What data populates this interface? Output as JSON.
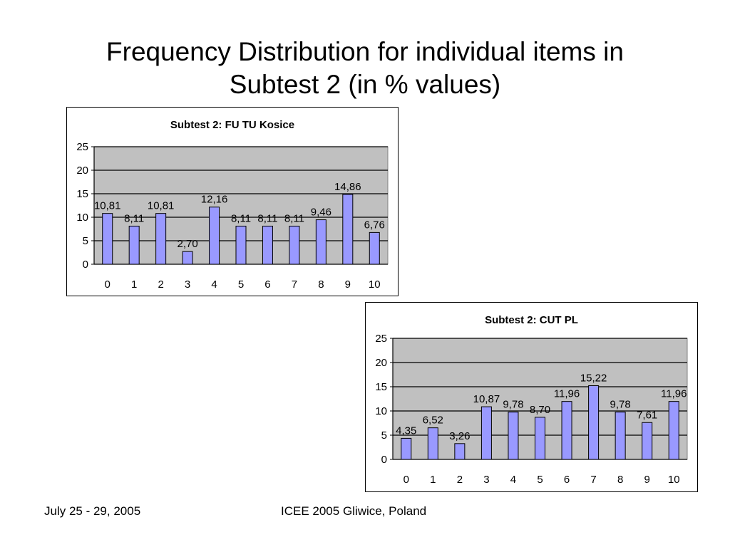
{
  "slide": {
    "title_line1": "Frequency Distribution for individual items in",
    "title_line2": "Subtest 2 (in % values)"
  },
  "footer": {
    "date": "July 25 - 29, 2005",
    "venue": "ICEE 2005 Gliwice, Poland"
  },
  "colors": {
    "bar_fill": "#9999ff",
    "bar_stroke": "#000000",
    "plot_bg": "#c0c0c0"
  },
  "chart_data": [
    {
      "type": "bar",
      "title": "Subtest 2: FU TU Kosice",
      "categories": [
        "0",
        "1",
        "2",
        "3",
        "4",
        "5",
        "6",
        "7",
        "8",
        "9",
        "10"
      ],
      "values": [
        10.81,
        8.11,
        10.81,
        2.7,
        12.16,
        8.11,
        8.11,
        8.11,
        9.46,
        14.86,
        6.76
      ],
      "data_labels": [
        "10,81",
        "8,11",
        "10,81",
        "2,70",
        "12,16",
        "8,11",
        "8,11",
        "8,11",
        "9,46",
        "14,86",
        "6,76"
      ],
      "yticks": [
        "0",
        "5",
        "10",
        "15",
        "20",
        "25"
      ],
      "ylim": [
        0,
        25
      ],
      "grid": true,
      "legend": "none"
    },
    {
      "type": "bar",
      "title": "Subtest 2: CUT PL",
      "categories": [
        "0",
        "1",
        "2",
        "3",
        "4",
        "5",
        "6",
        "7",
        "8",
        "9",
        "10"
      ],
      "values": [
        4.35,
        6.52,
        3.26,
        10.87,
        9.78,
        8.7,
        11.96,
        15.22,
        9.78,
        7.61,
        11.96
      ],
      "data_labels": [
        "4,35",
        "6,52",
        "3,26",
        "10,87",
        "9,78",
        "8,70",
        "11,96",
        "15,22",
        "9,78",
        "7,61",
        "11,96"
      ],
      "yticks": [
        "0",
        "5",
        "10",
        "15",
        "20",
        "25"
      ],
      "ylim": [
        0,
        25
      ],
      "grid": true,
      "legend": "none"
    }
  ]
}
